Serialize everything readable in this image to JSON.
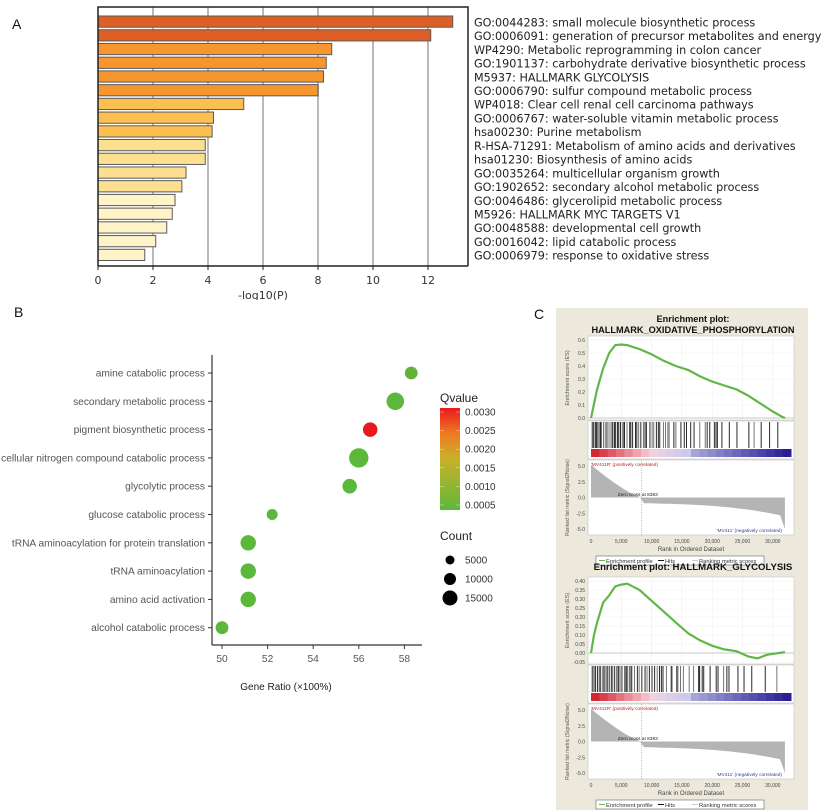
{
  "panels": {
    "a": "A",
    "b": "B",
    "c": "C"
  },
  "chart_data": [
    {
      "id": "A",
      "type": "bar",
      "orientation": "horizontal",
      "title": "",
      "xlabel": "-log10(P)",
      "ylabel": "",
      "xlim": [
        0,
        13.5
      ],
      "xticks": [
        0,
        2,
        4,
        6,
        8,
        10,
        12
      ],
      "grid": "vertical",
      "categories": [
        "GO:0044283: small molecule biosynthetic process",
        "GO:0006091: generation of precursor metabolites and energy",
        "WP4290: Metabolic reprogramming in colon cancer",
        "GO:1901137: carbohydrate derivative biosynthetic process",
        "M5937: HALLMARK GLYCOLYSIS",
        "GO:0006790: sulfur compound metabolic process",
        "WP4018: Clear cell renal cell carcinoma pathways",
        "GO:0006767: water-soluble vitamin metabolic process",
        "hsa00230: Purine metabolism",
        "R-HSA-71291: Metabolism of amino acids and derivatives",
        "hsa01230: Biosynthesis of amino acids",
        "GO:0035264: multicellular organism growth",
        "GO:1902652: secondary alcohol metabolic process",
        "GO:0046486: glycerolipid metabolic process",
        "M5926: HALLMARK MYC TARGETS V1",
        "GO:0048588: developmental cell growth",
        "GO:0016042: lipid catabolic process",
        "GO:0006979: response to oxidative stress"
      ],
      "values": [
        12.9,
        12.1,
        8.5,
        8.3,
        8.2,
        8.0,
        5.3,
        4.2,
        4.15,
        3.9,
        3.9,
        3.2,
        3.05,
        2.8,
        2.7,
        2.5,
        2.1,
        1.7
      ],
      "colors": [
        "#dd5f25",
        "#dd5f25",
        "#f7962e",
        "#f7962e",
        "#f7962e",
        "#f7962e",
        "#fbc050",
        "#fbc050",
        "#fbc050",
        "#fde08f",
        "#fde08f",
        "#fde08f",
        "#fde08f",
        "#fff4c8",
        "#fff4c8",
        "#fff4c8",
        "#fff4c8",
        "#fff4c8"
      ]
    },
    {
      "id": "B",
      "type": "scatter",
      "subtype": "bubble",
      "xlabel": "Gene Ratio (×100%)",
      "ylabel": "",
      "xlim": [
        49.6,
        58.8
      ],
      "xticks": [
        50,
        52,
        54,
        56,
        58
      ],
      "categories": [
        "amine catabolic process",
        "secondary metabolic process",
        "pigment biosynthetic process",
        "cellular nitrogen compound catabolic process",
        "glycolytic process",
        "glucose catabolic process",
        "tRNA aminoacylation for protein translation",
        "tRNA aminoacylation",
        "amino acid activation",
        "alcohol catabolic process"
      ],
      "x": [
        58.3,
        57.6,
        56.5,
        56.0,
        55.6,
        52.2,
        51.15,
        51.15,
        51.15,
        50.0
      ],
      "count": [
        5000,
        13000,
        7500,
        17000,
        7500,
        3000,
        9000,
        9000,
        9000,
        5000
      ],
      "qvalue": [
        0.0006,
        0.0005,
        0.003,
        0.0005,
        0.0005,
        0.0005,
        0.0005,
        0.0005,
        0.0005,
        0.0005
      ],
      "legend_color": {
        "title": "Qvalue",
        "ticks": [
          "0.0030",
          "0.0025",
          "0.0020",
          "0.0015",
          "0.0010",
          "0.0005"
        ],
        "low_color": "#5cb83a",
        "high_color": "#e8191e"
      },
      "legend_size": {
        "title": "Count",
        "entries": [
          5000,
          10000,
          15000
        ],
        "labels": [
          "5000",
          "10000",
          "15000"
        ]
      }
    },
    {
      "id": "C1",
      "type": "line",
      "title_line1": "Enrichment plot:",
      "title_line2": "HALLMARK_OXIDATIVE_PHOSPHORYLATION",
      "ylabel": "Enrichment score (ES)",
      "ylim": [
        0.0,
        0.6
      ],
      "yticks": [
        "0.6",
        "0.5",
        "0.4",
        "0.3",
        "0.2",
        "0.1",
        "0.0"
      ],
      "x": [
        0,
        1000,
        2000,
        3000,
        4000,
        5000,
        6000,
        8000,
        10000,
        12000,
        14000,
        16000,
        18000,
        20000,
        22000,
        24000,
        26000,
        28000,
        30000,
        31500,
        32000
      ],
      "es": [
        0.0,
        0.22,
        0.38,
        0.5,
        0.56,
        0.565,
        0.56,
        0.53,
        0.49,
        0.44,
        0.4,
        0.37,
        0.32,
        0.28,
        0.25,
        0.22,
        0.17,
        0.11,
        0.05,
        0.01,
        0.0
      ],
      "hits_density": "dense-left",
      "ranked_ylabel": "Ranked list metric (Signal2Noise)",
      "ranked_yticks": [
        "5.0",
        "2.5",
        "0.0",
        "-2.5",
        "-5.0"
      ],
      "xticks": [
        "0",
        "5,000",
        "10,000",
        "15,000",
        "20,000",
        "25,000",
        "30,000"
      ],
      "xlabel": "Rank in Ordered Dataset",
      "pos_label": "'MV411R' (positively correlated)",
      "neg_label": "'MV411' (negatively correlated)",
      "zero_cross_label": "Zero cross at 8383",
      "legend": [
        "Enrichment profile",
        "Hits",
        "Ranking metric scores"
      ]
    },
    {
      "id": "C2",
      "type": "line",
      "title_line1": "Enrichment plot: HALLMARK_GLYCOLYSIS",
      "title_line2": "",
      "ylabel": "Enrichment score (ES)",
      "ylim": [
        -0.05,
        0.4
      ],
      "yticks": [
        "0.40",
        "0.35",
        "0.30",
        "0.25",
        "0.20",
        "0.15",
        "0.10",
        "0.05",
        "0.00",
        "-0.05"
      ],
      "x": [
        0,
        500,
        1000,
        2000,
        3000,
        4000,
        5000,
        6000,
        8000,
        10000,
        12000,
        14000,
        16000,
        18000,
        20000,
        22000,
        24000,
        26000,
        27500,
        29000,
        31000,
        32000
      ],
      "es": [
        0.0,
        0.1,
        0.17,
        0.28,
        0.32,
        0.37,
        0.38,
        0.385,
        0.35,
        0.29,
        0.23,
        0.17,
        0.11,
        0.07,
        0.04,
        0.02,
        0.01,
        -0.02,
        -0.03,
        -0.01,
        0.0,
        0.005
      ],
      "hits_density": "dense-left",
      "ranked_ylabel": "Ranked list metric (Signal2Noise)",
      "ranked_yticks": [
        "5.0",
        "2.5",
        "0.0",
        "-2.5",
        "-5.0"
      ],
      "xticks": [
        "0",
        "5,000",
        "10,000",
        "15,000",
        "20,000",
        "25,000",
        "30,000"
      ],
      "xlabel": "Rank in Ordered Dataset",
      "pos_label": "'MV411R' (positively correlated)",
      "neg_label": "'MV411' (negatively correlated)",
      "zero_cross_label": "Zero cross at 8383",
      "legend": [
        "Enrichment profile",
        "Hits",
        "Ranking metric scores"
      ]
    }
  ]
}
